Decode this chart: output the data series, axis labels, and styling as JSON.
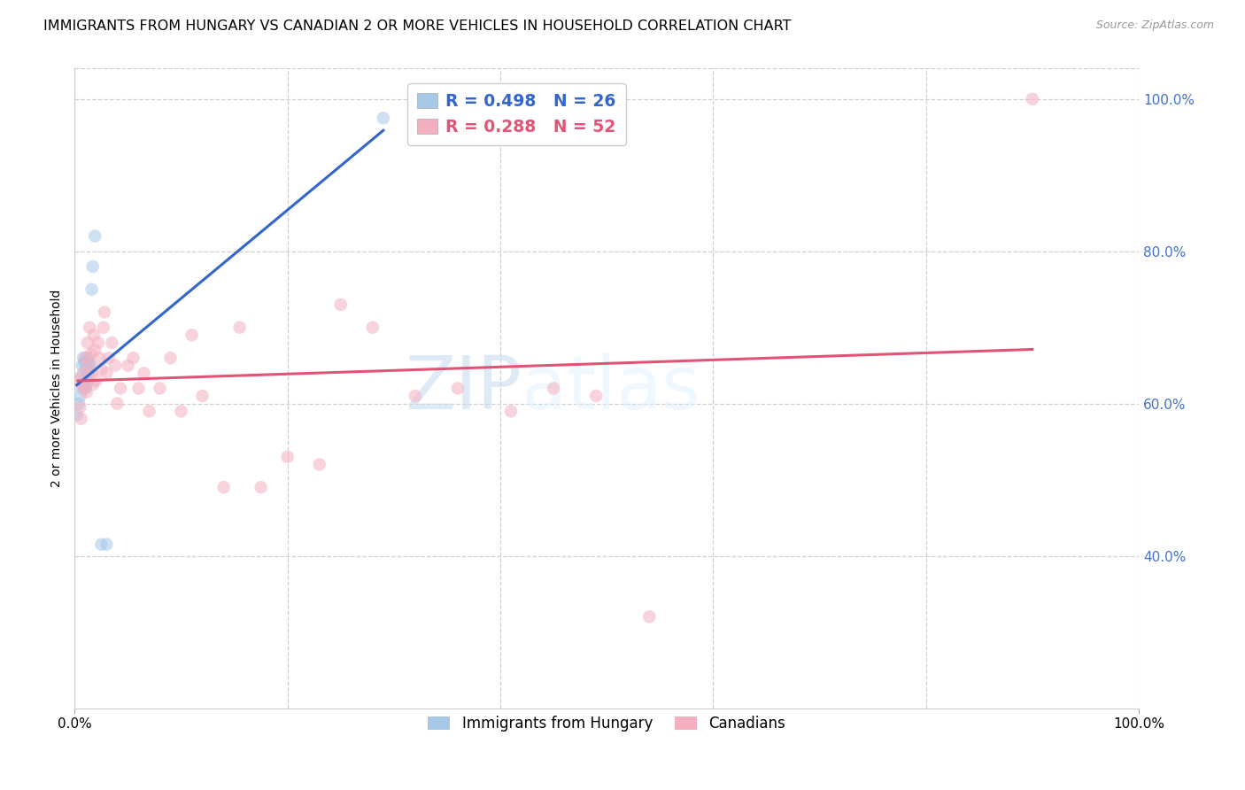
{
  "title": "IMMIGRANTS FROM HUNGARY VS CANADIAN 2 OR MORE VEHICLES IN HOUSEHOLD CORRELATION CHART",
  "source_text": "Source: ZipAtlas.com",
  "ylabel": "2 or more Vehicles in Household",
  "legend_labels_bottom": [
    "Immigrants from Hungary",
    "Canadians"
  ],
  "r_blue": 0.498,
  "n_blue": 26,
  "r_pink": 0.288,
  "n_pink": 52,
  "blue_scatter_x": [
    0.002,
    0.004,
    0.005,
    0.006,
    0.007,
    0.007,
    0.008,
    0.008,
    0.009,
    0.009,
    0.01,
    0.01,
    0.011,
    0.011,
    0.012,
    0.012,
    0.013,
    0.013,
    0.014,
    0.015,
    0.016,
    0.017,
    0.019,
    0.025,
    0.03,
    0.29
  ],
  "blue_scatter_y": [
    0.585,
    0.6,
    0.61,
    0.635,
    0.62,
    0.65,
    0.625,
    0.66,
    0.63,
    0.655,
    0.62,
    0.645,
    0.625,
    0.655,
    0.63,
    0.66,
    0.64,
    0.655,
    0.645,
    0.65,
    0.75,
    0.78,
    0.82,
    0.415,
    0.415,
    0.975
  ],
  "pink_scatter_x": [
    0.003,
    0.005,
    0.006,
    0.007,
    0.008,
    0.009,
    0.01,
    0.011,
    0.012,
    0.013,
    0.014,
    0.015,
    0.016,
    0.017,
    0.018,
    0.019,
    0.02,
    0.022,
    0.023,
    0.025,
    0.027,
    0.028,
    0.03,
    0.032,
    0.035,
    0.038,
    0.04,
    0.043,
    0.05,
    0.055,
    0.06,
    0.065,
    0.07,
    0.08,
    0.09,
    0.1,
    0.11,
    0.12,
    0.14,
    0.155,
    0.175,
    0.2,
    0.23,
    0.25,
    0.28,
    0.32,
    0.36,
    0.41,
    0.45,
    0.49,
    0.54,
    0.9
  ],
  "pink_scatter_y": [
    0.63,
    0.595,
    0.58,
    0.625,
    0.64,
    0.62,
    0.66,
    0.615,
    0.68,
    0.65,
    0.7,
    0.665,
    0.64,
    0.625,
    0.69,
    0.67,
    0.63,
    0.68,
    0.66,
    0.645,
    0.7,
    0.72,
    0.64,
    0.66,
    0.68,
    0.65,
    0.6,
    0.62,
    0.65,
    0.66,
    0.62,
    0.64,
    0.59,
    0.62,
    0.66,
    0.59,
    0.69,
    0.61,
    0.49,
    0.7,
    0.49,
    0.53,
    0.52,
    0.73,
    0.7,
    0.61,
    0.62,
    0.59,
    0.62,
    0.61,
    0.32,
    1.0
  ],
  "blue_dot_color": "#a8c8e8",
  "blue_line_color": "#3366cc",
  "pink_dot_color": "#f4b0c0",
  "pink_line_color": "#e05575",
  "watermark_zip": "ZIP",
  "watermark_atlas": "atlas",
  "title_fontsize": 11.5,
  "axis_label_fontsize": 10,
  "tick_fontsize": 11,
  "right_tick_color": "#4472c4",
  "dot_size": 110,
  "dot_alpha": 0.55,
  "line_width": 2.2,
  "grid_color": "#d0d0d0",
  "grid_style": "--",
  "background_color": "#ffffff",
  "xlim": [
    0.0,
    1.0
  ],
  "ylim": [
    0.2,
    1.04
  ],
  "y_ticks": [
    0.4,
    0.6,
    0.8,
    1.0
  ],
  "x_ticks": [
    0.0,
    1.0
  ]
}
